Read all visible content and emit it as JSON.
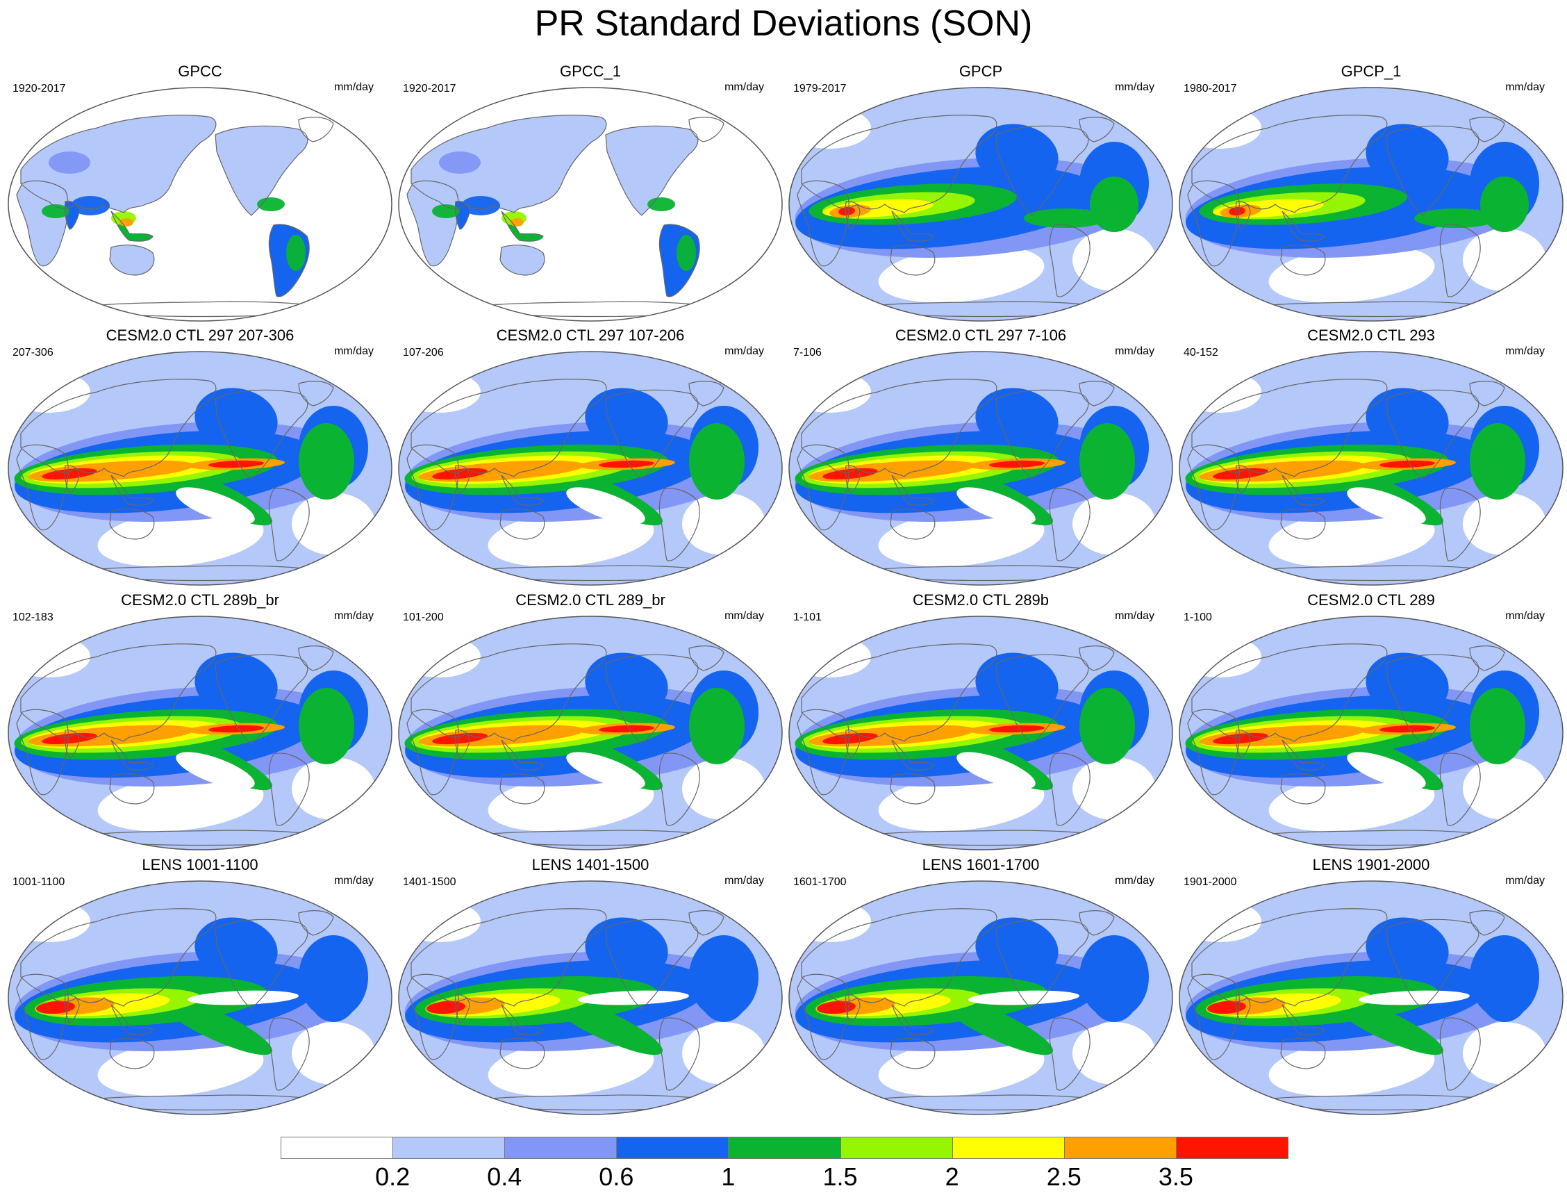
{
  "title": "PR Standard Deviations (SON)",
  "panels": [
    {
      "title": "GPCC",
      "period": "1920-2017",
      "units": "mm/day",
      "kind": "land"
    },
    {
      "title": "GPCC_1",
      "period": "1920-2017",
      "units": "mm/day",
      "kind": "land"
    },
    {
      "title": "GPCP",
      "period": "1979-2017",
      "units": "mm/day",
      "kind": "obs"
    },
    {
      "title": "GPCP_1",
      "period": "1980-2017",
      "units": "mm/day",
      "kind": "obs"
    },
    {
      "title": "CESM2.0 CTL 297 207-306",
      "period": "207-306",
      "units": "mm/day",
      "kind": "model"
    },
    {
      "title": "CESM2.0 CTL 297 107-206",
      "period": "107-206",
      "units": "mm/day",
      "kind": "model"
    },
    {
      "title": "CESM2.0 CTL 297 7-106",
      "period": "7-106",
      "units": "mm/day",
      "kind": "model"
    },
    {
      "title": "CESM2.0 CTL 293",
      "period": "40-152",
      "units": "mm/day",
      "kind": "model"
    },
    {
      "title": "CESM2.0 CTL 289b_br",
      "period": "102-183",
      "units": "mm/day",
      "kind": "model"
    },
    {
      "title": "CESM2.0 CTL 289_br",
      "period": "101-200",
      "units": "mm/day",
      "kind": "model"
    },
    {
      "title": "CESM2.0 CTL 289b",
      "period": "1-101",
      "units": "mm/day",
      "kind": "model"
    },
    {
      "title": "CESM2.0 CTL 289",
      "period": "1-100",
      "units": "mm/day",
      "kind": "model"
    },
    {
      "title": "LENS 1001-1100",
      "period": "1001-1100",
      "units": "mm/day",
      "kind": "lens"
    },
    {
      "title": "LENS 1401-1500",
      "period": "1401-1500",
      "units": "mm/day",
      "kind": "lens"
    },
    {
      "title": "LENS 1601-1700",
      "period": "1601-1700",
      "units": "mm/day",
      "kind": "lens"
    },
    {
      "title": "LENS 1901-2000",
      "period": "1901-2000",
      "units": "mm/day",
      "kind": "lens"
    }
  ],
  "colorbar": {
    "colors": [
      "#ffffff",
      "#b4c8fa",
      "#8296f5",
      "#1464f0",
      "#0ab432",
      "#96f500",
      "#ffff00",
      "#ffa000",
      "#ff1400"
    ],
    "labels": [
      "0.2",
      "0.4",
      "0.6",
      "1",
      "1.5",
      "2",
      "2.5",
      "3.5"
    ]
  }
}
